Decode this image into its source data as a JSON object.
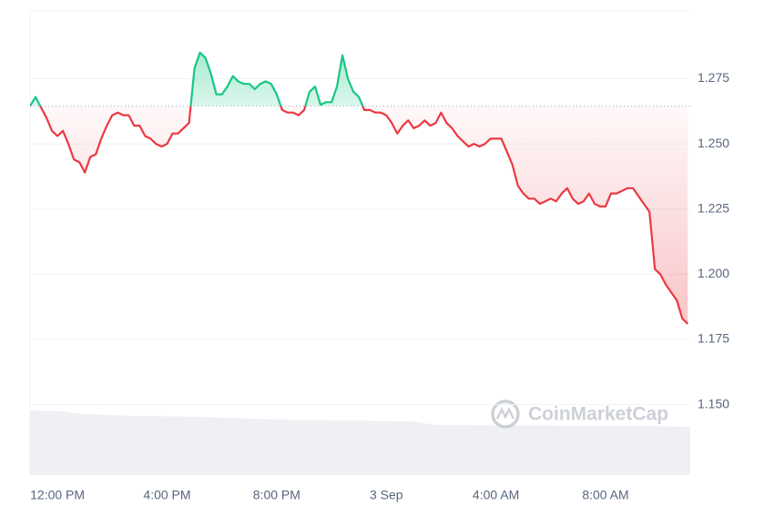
{
  "chart_data": {
    "type": "line",
    "watermark": "CoinMarketCap",
    "x": [
      11.0,
      11.2,
      11.4,
      11.6,
      11.8,
      12.0,
      12.2,
      12.4,
      12.6,
      12.8,
      13.0,
      13.2,
      13.4,
      13.6,
      13.8,
      14.0,
      14.2,
      14.4,
      14.6,
      14.8,
      15.0,
      15.2,
      15.4,
      15.6,
      15.8,
      16.0,
      16.2,
      16.4,
      16.6,
      16.8,
      17.0,
      17.2,
      17.4,
      17.6,
      17.8,
      18.0,
      18.2,
      18.4,
      18.6,
      18.8,
      19.0,
      19.2,
      19.4,
      19.6,
      19.8,
      20.0,
      20.2,
      20.4,
      20.6,
      20.8,
      21.0,
      21.2,
      21.4,
      21.6,
      21.8,
      22.0,
      22.2,
      22.4,
      22.6,
      22.8,
      23.0,
      23.2,
      23.4,
      23.6,
      23.8,
      24.0,
      24.2,
      24.4,
      24.6,
      24.8,
      25.0,
      25.2,
      25.4,
      25.6,
      25.8,
      26.0,
      26.2,
      26.4,
      26.6,
      26.8,
      27.0,
      27.2,
      27.4,
      27.6,
      27.8,
      28.0,
      28.2,
      28.4,
      28.6,
      28.8,
      29.0,
      29.2,
      29.4,
      29.6,
      29.8,
      30.0,
      30.2,
      30.4,
      30.6,
      30.8,
      31.0,
      31.2,
      31.4,
      31.6,
      31.8,
      32.0,
      32.2,
      32.4,
      32.6,
      32.8,
      33.0,
      33.2,
      33.4,
      33.6,
      33.8,
      34.0,
      34.2,
      34.4,
      34.6,
      34.8,
      35.0
    ],
    "values": [
      1.2645,
      1.268,
      1.264,
      1.26,
      1.255,
      1.253,
      1.255,
      1.25,
      1.244,
      1.243,
      1.239,
      1.245,
      1.246,
      1.252,
      1.257,
      1.261,
      1.262,
      1.261,
      1.261,
      1.257,
      1.257,
      1.253,
      1.252,
      1.25,
      1.249,
      1.25,
      1.254,
      1.254,
      1.256,
      1.258,
      1.279,
      1.285,
      1.283,
      1.277,
      1.269,
      1.269,
      1.272,
      1.276,
      1.274,
      1.273,
      1.273,
      1.271,
      1.273,
      1.274,
      1.273,
      1.269,
      1.263,
      1.262,
      1.262,
      1.261,
      1.263,
      1.27,
      1.272,
      1.265,
      1.266,
      1.266,
      1.272,
      1.284,
      1.275,
      1.27,
      1.268,
      1.263,
      1.263,
      1.262,
      1.262,
      1.261,
      1.258,
      1.254,
      1.257,
      1.259,
      1.256,
      1.257,
      1.259,
      1.257,
      1.258,
      1.262,
      1.258,
      1.256,
      1.253,
      1.251,
      1.249,
      1.25,
      1.249,
      1.25,
      1.252,
      1.252,
      1.252,
      1.247,
      1.242,
      1.234,
      1.231,
      1.229,
      1.229,
      1.227,
      1.228,
      1.229,
      1.228,
      1.231,
      1.233,
      1.229,
      1.227,
      1.228,
      1.231,
      1.227,
      1.226,
      1.226,
      1.231,
      1.231,
      1.232,
      1.233,
      1.233,
      1.23,
      1.227,
      1.224,
      1.202,
      1.2,
      1.196,
      1.193,
      1.19,
      1.183,
      1.181
    ],
    "reference_line": 1.2645,
    "up_color": "#16c784",
    "down_color": "#ea3943",
    "xlim": [
      11,
      35.09
    ],
    "xticks": [
      {
        "value": 12,
        "label": "12:00 PM"
      },
      {
        "value": 16,
        "label": "4:00 PM"
      },
      {
        "value": 20,
        "label": "8:00 PM"
      },
      {
        "value": 24,
        "label": "3 Sep"
      },
      {
        "value": 28,
        "label": "4:00 AM"
      },
      {
        "value": 32,
        "label": "8:00 AM"
      }
    ],
    "ylim": [
      1.123,
      1.301
    ],
    "yticks": [
      {
        "value": 1.15,
        "label": "1.150"
      },
      1.175,
      {
        "value": 1.2,
        "label": "1.200"
      },
      1.225,
      {
        "value": 1.25,
        "label": "1.250"
      },
      1.275
    ],
    "grid": true
  }
}
